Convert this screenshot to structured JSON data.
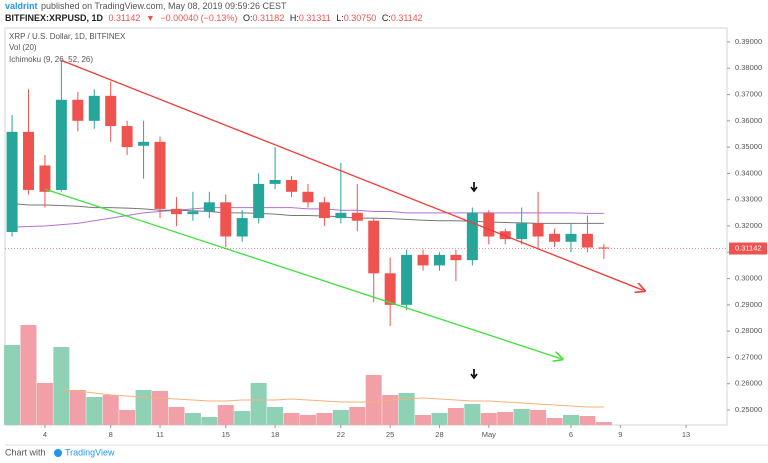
{
  "header": {
    "author": "valdrint",
    "published": "published on TradingView.com, May 08, 2019 09:59:26 CEST",
    "symbol": "BITFINEX:XRPUSD, 1D",
    "price": "0.31142",
    "direction": "▼",
    "change": "−0.00040 (−0.13%)",
    "o_label": "O:",
    "o": "0.31182",
    "h_label": "H:",
    "h": "0.31311",
    "l_label": "L:",
    "l": "0.30750",
    "c_label": "C:",
    "c": "0.31142"
  },
  "footer": {
    "text": "Chart with",
    "brand": "TradingView"
  },
  "chart_data": {
    "type": "candlestick",
    "legend": [
      "XRP / U.S. Dollar, 1D, BITFINEX",
      "Vol (20)",
      "Ichimoku (9, 26, 52, 26)"
    ],
    "up_color": "#26a69a",
    "down_color": "#ef5350",
    "volume_up_color": "#8fd1b5",
    "volume_down_color": "#f2a0a8",
    "open": [
      0.3177,
      0.3558,
      0.343,
      0.3337,
      0.368,
      0.36,
      0.3695,
      0.358,
      0.3505,
      0.352,
      0.3265,
      0.3245,
      0.3255,
      0.329,
      0.316,
      0.323,
      0.336,
      0.3375,
      0.333,
      0.329,
      0.323,
      0.325,
      0.322,
      0.302,
      0.29,
      0.309,
      0.305,
      0.309,
      0.307,
      0.325,
      0.318,
      0.315,
      0.321,
      0.317,
      0.314,
      0.317,
      0.31182
    ],
    "high": [
      0.3622,
      0.372,
      0.347,
      0.383,
      0.371,
      0.372,
      0.375,
      0.36,
      0.36,
      0.354,
      0.331,
      0.333,
      0.333,
      0.332,
      0.326,
      0.34,
      0.35,
      0.339,
      0.336,
      0.331,
      0.344,
      0.336,
      0.323,
      0.308,
      0.311,
      0.311,
      0.31,
      0.311,
      0.327,
      0.326,
      0.319,
      0.327,
      0.333,
      0.319,
      0.321,
      0.324,
      0.31311
    ],
    "low": [
      0.316,
      0.332,
      0.327,
      0.333,
      0.356,
      0.357,
      0.352,
      0.347,
      0.338,
      0.323,
      0.32,
      0.322,
      0.323,
      0.312,
      0.314,
      0.321,
      0.334,
      0.331,
      0.327,
      0.32,
      0.321,
      0.318,
      0.291,
      0.282,
      0.288,
      0.303,
      0.303,
      0.299,
      0.305,
      0.313,
      0.313,
      0.313,
      0.311,
      0.312,
      0.31,
      0.31,
      0.3075
    ],
    "close": [
      0.3558,
      0.3337,
      0.333,
      0.368,
      0.36,
      0.3695,
      0.358,
      0.35,
      0.352,
      0.3265,
      0.3245,
      0.3255,
      0.329,
      0.316,
      0.323,
      0.336,
      0.3375,
      0.333,
      0.329,
      0.323,
      0.325,
      0.322,
      0.302,
      0.29,
      0.309,
      0.305,
      0.309,
      0.307,
      0.325,
      0.316,
      0.315,
      0.321,
      0.316,
      0.314,
      0.317,
      0.3118,
      0.31142
    ],
    "volume": [
      80,
      100,
      42,
      78,
      35,
      28,
      30,
      15,
      35,
      34,
      18,
      12,
      8,
      20,
      14,
      42,
      18,
      12,
      10,
      12,
      15,
      18,
      50,
      30,
      32,
      10,
      12,
      17,
      21,
      12,
      13,
      16,
      15,
      7,
      10,
      9,
      3
    ],
    "volume_ma": {
      "color": "#f7b27a",
      "values": [
        null,
        null,
        null,
        35,
        34,
        32,
        30,
        29,
        28,
        27,
        26,
        25,
        24,
        24,
        25,
        25,
        25,
        26,
        25,
        24,
        23,
        23,
        23,
        25,
        26,
        27,
        26,
        25,
        24,
        24,
        23,
        22,
        21,
        20,
        19,
        18,
        18
      ]
    },
    "ichimoku": [
      {
        "color": "#b56fd6",
        "values": [
          0.3195,
          0.3198,
          0.32,
          0.3205,
          0.321,
          0.322,
          0.323,
          0.324,
          0.325,
          0.3255,
          0.326,
          0.3265,
          0.327,
          0.327,
          0.327,
          0.327,
          0.327,
          0.327,
          0.3265,
          0.3265,
          0.326,
          0.326,
          0.3255,
          0.3255,
          0.325,
          0.325,
          0.325,
          0.325,
          0.325,
          0.325,
          0.325,
          0.325,
          0.325,
          0.325,
          0.325,
          0.3248,
          0.3248
        ]
      },
      {
        "color": "#777777",
        "values": [
          0.3285,
          0.328,
          0.328,
          0.3278,
          0.3275,
          0.327,
          0.327,
          0.3268,
          0.3265,
          0.326,
          0.326,
          0.3258,
          0.3255,
          0.325,
          0.325,
          0.3248,
          0.3245,
          0.324,
          0.324,
          0.3238,
          0.3235,
          0.323,
          0.323,
          0.3228,
          0.3225,
          0.3222,
          0.322,
          0.322,
          0.3218,
          0.3215,
          0.3213,
          0.3212,
          0.321,
          0.321,
          0.321,
          0.321,
          0.321
        ]
      }
    ],
    "trendlines": [
      {
        "color": "#f23a36",
        "x0": 3,
        "y0": 0.383,
        "x1": 38.4,
        "y1": 0.2955
      },
      {
        "color": "#3fe03a",
        "x0": 2,
        "y0": 0.334,
        "x1": 33.4,
        "y1": 0.2695
      }
    ],
    "last_price": 0.31142,
    "xlim": [
      -0.43,
      43.49
    ],
    "ylim": [
      0.2443,
      0.3953
    ],
    "volume_ylim": [
      0,
      120
    ],
    "yticks": [
      {
        "value": 0.25,
        "label": "0.25000"
      },
      {
        "value": 0.26,
        "label": "0.26000"
      },
      {
        "value": 0.27,
        "label": "0.27000"
      },
      {
        "value": 0.28,
        "label": "0.28000"
      },
      {
        "value": 0.29,
        "label": "0.29000"
      },
      {
        "value": 0.3,
        "label": "0.30000"
      },
      {
        "value": 0.31,
        "label": "0.31000"
      },
      {
        "value": 0.32,
        "label": "0.32000"
      },
      {
        "value": 0.33,
        "label": "0.33000"
      },
      {
        "value": 0.34,
        "label": "0.34000"
      },
      {
        "value": 0.35,
        "label": "0.35000"
      },
      {
        "value": 0.36,
        "label": "0.36000"
      },
      {
        "value": 0.37,
        "label": "0.37000"
      },
      {
        "value": 0.38,
        "label": "0.38000"
      },
      {
        "value": 0.39,
        "label": "0.39000"
      }
    ],
    "xticks": [
      {
        "value": 2,
        "label": "4"
      },
      {
        "value": 6,
        "label": "8"
      },
      {
        "value": 9,
        "label": "11"
      },
      {
        "value": 13,
        "label": "15"
      },
      {
        "value": 16,
        "label": "18"
      },
      {
        "value": 20,
        "label": "22"
      },
      {
        "value": 23,
        "label": "25"
      },
      {
        "value": 26,
        "label": "28"
      },
      {
        "value": 29,
        "label": "May"
      },
      {
        "value": 34,
        "label": "6"
      },
      {
        "value": 37,
        "label": "9"
      },
      {
        "value": 41,
        "label": "13"
      }
    ]
  }
}
